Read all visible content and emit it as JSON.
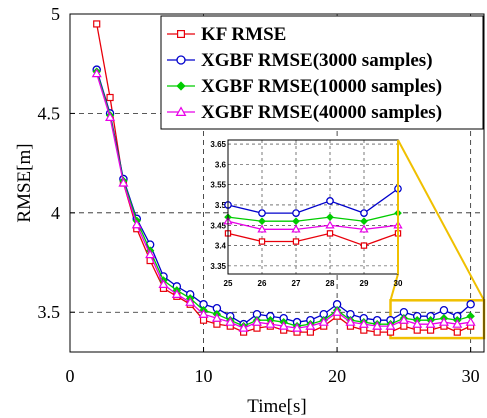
{
  "chart_data": {
    "type": "line",
    "title": "",
    "xlabel": "Time[s]",
    "ylabel": "RMSE[m]",
    "xlim": [
      0,
      31
    ],
    "ylim": [
      3.3,
      5
    ],
    "x_ticks": [
      0,
      10,
      20,
      30
    ],
    "x_tick_labels": [
      "0",
      "10",
      "20",
      "30"
    ],
    "y_ticks": [
      3.5,
      4,
      4.5,
      5
    ],
    "y_tick_labels": [
      "3.5",
      "4",
      "4.5",
      "5"
    ],
    "grid": true,
    "legend_position": "top-right",
    "x": [
      2,
      3,
      4,
      5,
      6,
      7,
      8,
      9,
      10,
      11,
      12,
      13,
      14,
      15,
      16,
      17,
      18,
      19,
      20,
      21,
      22,
      23,
      24,
      25,
      26,
      27,
      28,
      29,
      30
    ],
    "series": [
      {
        "name": "KF RMSE",
        "color": "#e8000b",
        "marker": "square",
        "values": [
          4.95,
          4.58,
          4.15,
          3.92,
          3.76,
          3.62,
          3.58,
          3.54,
          3.46,
          3.44,
          3.43,
          3.4,
          3.42,
          3.43,
          3.41,
          3.4,
          3.4,
          3.43,
          3.48,
          3.43,
          3.41,
          3.4,
          3.4,
          3.43,
          3.41,
          3.41,
          3.43,
          3.4,
          3.43
        ]
      },
      {
        "name": "XGBF RMSE(3000 samples)",
        "color": "#0000cc",
        "marker": "circle",
        "values": [
          4.72,
          4.5,
          4.17,
          3.97,
          3.84,
          3.68,
          3.63,
          3.59,
          3.54,
          3.52,
          3.48,
          3.44,
          3.49,
          3.48,
          3.47,
          3.45,
          3.46,
          3.49,
          3.54,
          3.49,
          3.47,
          3.46,
          3.46,
          3.5,
          3.48,
          3.48,
          3.51,
          3.48,
          3.54
        ]
      },
      {
        "name": "XGBF RMSE(10000 samples)",
        "color": "#00cc00",
        "marker": "diamond",
        "values": [
          4.71,
          4.49,
          4.16,
          3.96,
          3.81,
          3.66,
          3.61,
          3.57,
          3.51,
          3.49,
          3.46,
          3.43,
          3.46,
          3.46,
          3.45,
          3.43,
          3.44,
          3.46,
          3.51,
          3.46,
          3.45,
          3.44,
          3.44,
          3.47,
          3.46,
          3.46,
          3.47,
          3.46,
          3.48
        ]
      },
      {
        "name": "XGBF RMSE(40000 samples)",
        "color": "#e800e8",
        "marker": "triangle",
        "values": [
          4.7,
          4.48,
          4.15,
          3.94,
          3.79,
          3.64,
          3.59,
          3.55,
          3.49,
          3.47,
          3.45,
          3.42,
          3.45,
          3.44,
          3.43,
          3.42,
          3.43,
          3.45,
          3.5,
          3.45,
          3.44,
          3.43,
          3.43,
          3.46,
          3.44,
          3.44,
          3.45,
          3.44,
          3.45
        ]
      }
    ],
    "inset": {
      "xlim": [
        25,
        30
      ],
      "ylim": [
        3.33,
        3.66
      ],
      "x_tick_labels": [
        "25",
        "26",
        "27",
        "28",
        "29",
        "30"
      ],
      "y_tick_labels": [
        "3.35",
        "3.4",
        "3.45",
        "3.5",
        "3.55",
        "3.6",
        "3.65"
      ],
      "zoom_region": {
        "x": [
          24,
          31
        ],
        "y": [
          3.37,
          3.56
        ]
      },
      "highlight_color": "#f0c000"
    }
  }
}
